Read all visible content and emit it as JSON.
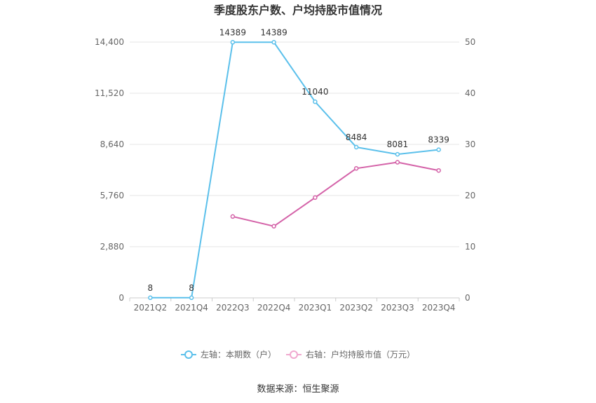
{
  "chart_data": {
    "type": "line",
    "title": "季度股东户数、户均持股市值情况",
    "categories": [
      "2021Q2",
      "2021Q4",
      "2022Q3",
      "2022Q4",
      "2023Q1",
      "2023Q2",
      "2023Q3",
      "2023Q4"
    ],
    "y_left": {
      "ticks": [
        "0",
        "2,880",
        "5,760",
        "8,640",
        "11,520",
        "14,400"
      ],
      "range": [
        0,
        14400
      ]
    },
    "y_right": {
      "ticks": [
        "0",
        "10",
        "20",
        "30",
        "40",
        "50"
      ],
      "range": [
        0,
        50
      ]
    },
    "series": [
      {
        "name": "左轴：本期数（户）",
        "axis": "left",
        "color": "#5bc0eb",
        "values": [
          8,
          8,
          14389,
          14389,
          11040,
          8484,
          8081,
          8339
        ],
        "labels": [
          "8",
          "8",
          "14389",
          "14389",
          "11040",
          "8484",
          "8081",
          "8339"
        ]
      },
      {
        "name": "右轴：户均持股市值（万元）",
        "axis": "right",
        "color": "#d462a8",
        "legend_color": "#f0a8cf",
        "values": [
          null,
          null,
          15.9,
          14.0,
          19.6,
          25.3,
          26.5,
          24.9
        ]
      }
    ],
    "grid": true,
    "legend_position": "bottom"
  },
  "source": "数据来源：恒生聚源"
}
